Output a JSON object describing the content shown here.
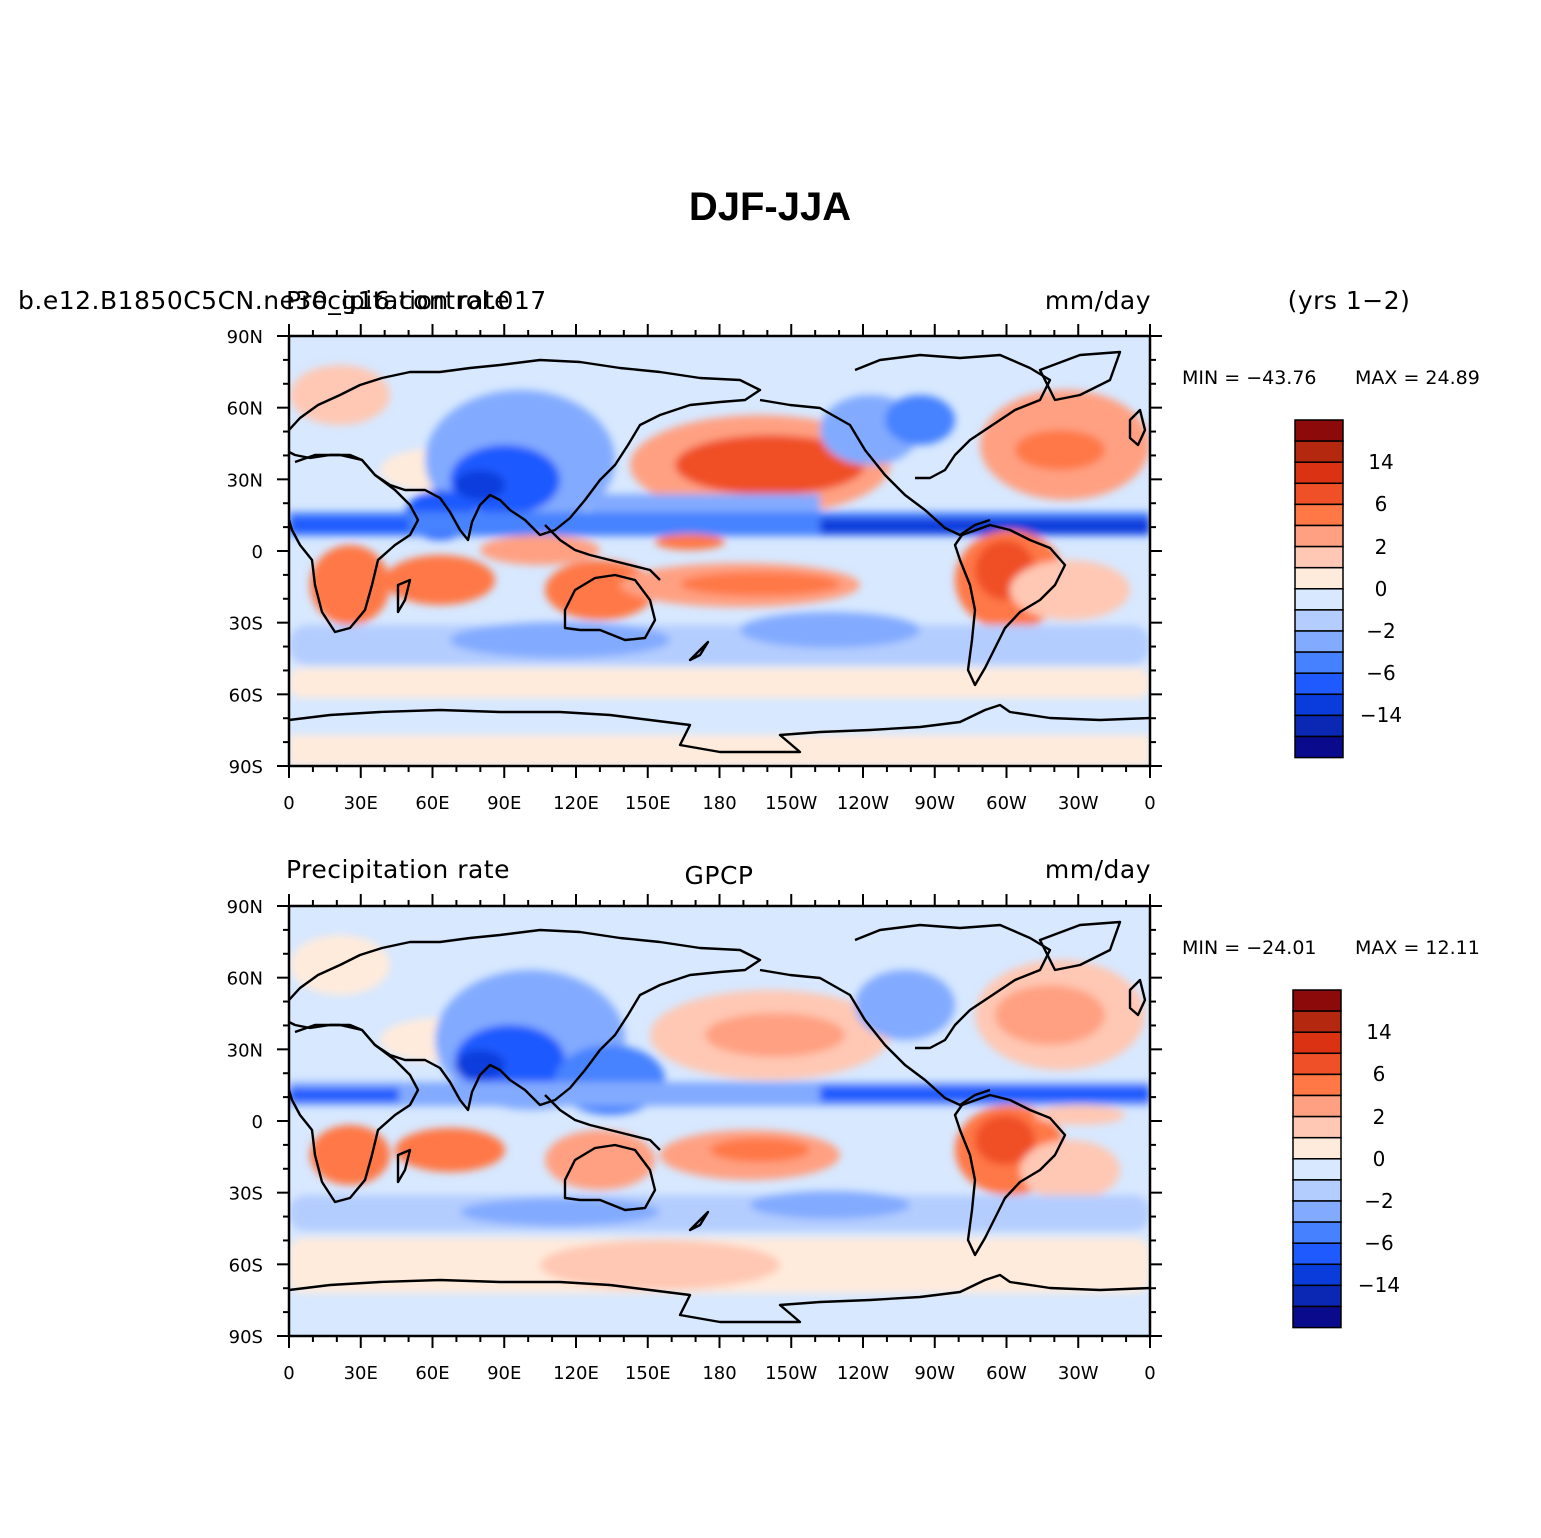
{
  "title": "DJF-JJA",
  "panels": [
    {
      "id": "top",
      "left_label_a": "b.e12.B1850C5CN.ne30_g16.control.017",
      "left_label_b": "Precipitation rate",
      "center_label": "",
      "units": "mm/day",
      "period": "(yrs 1−2)",
      "min_label": "MIN = −43.76",
      "max_label": "MAX =  24.89"
    },
    {
      "id": "bottom",
      "left_label_a": "Precipitation rate",
      "left_label_b": "",
      "center_label": "GPCP",
      "units": "mm/day",
      "period": "",
      "min_label": "MIN = −24.01",
      "max_label": "MAX =  12.11"
    }
  ],
  "chart_data": {
    "type": "heatmap",
    "title": "DJF-JJA",
    "variable": "Precipitation rate",
    "units": "mm/day",
    "x_ticks": [
      "0",
      "30E",
      "60E",
      "90E",
      "120E",
      "150E",
      "180",
      "150W",
      "120W",
      "90W",
      "60W",
      "30W",
      "0"
    ],
    "y_ticks": [
      "90N",
      "60N",
      "30N",
      "0",
      "30S",
      "60S",
      "90S"
    ],
    "xlim_deg_east": [
      0,
      360
    ],
    "ylim_deg_north": [
      -90,
      90
    ],
    "colorbar": {
      "levels": [
        -14,
        -10,
        -6,
        -4,
        -2,
        -1,
        0,
        1,
        2,
        4,
        6,
        10,
        14
      ],
      "labels": [
        "14",
        "6",
        "2",
        "0",
        "−2",
        "−6",
        "−14"
      ],
      "colors": [
        "#0a0a8c",
        "#0a28b4",
        "#0a3cdc",
        "#1e5aff",
        "#4682ff",
        "#82aaff",
        "#b4cdff",
        "#d7e8ff",
        "#ffebdc",
        "#ffc8b4",
        "#ffa082",
        "#ff7846",
        "#f05028",
        "#dc3214",
        "#b4280f",
        "#8c0a0a"
      ]
    },
    "panels": [
      {
        "name": "b.e12.B1850C5CN.ne30_g16.control.017",
        "years": "1-2",
        "min": -43.76,
        "max": 24.89
      },
      {
        "name": "GPCP",
        "min": -24.01,
        "max": 12.11
      }
    ]
  }
}
